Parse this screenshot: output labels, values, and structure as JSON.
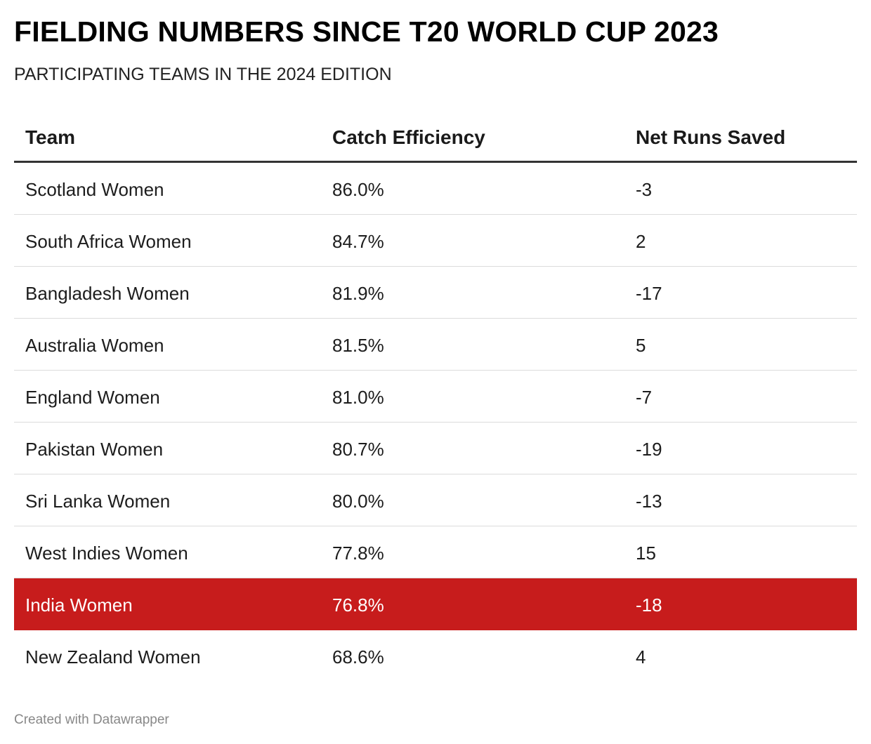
{
  "header": {
    "title": "FIELDING NUMBERS SINCE T20 WORLD CUP 2023",
    "subtitle": "PARTICIPATING TEAMS IN THE 2024 EDITION"
  },
  "chart_data": {
    "type": "table",
    "columns": [
      "Team",
      "Catch Efficiency",
      "Net Runs Saved"
    ],
    "rows": [
      {
        "team": "Scotland Women",
        "catch_efficiency": "86.0%",
        "net_runs_saved": "-3",
        "highlight": false
      },
      {
        "team": "South Africa Women",
        "catch_efficiency": "84.7%",
        "net_runs_saved": "2",
        "highlight": false
      },
      {
        "team": "Bangladesh Women",
        "catch_efficiency": "81.9%",
        "net_runs_saved": "-17",
        "highlight": false
      },
      {
        "team": "Australia Women",
        "catch_efficiency": "81.5%",
        "net_runs_saved": "5",
        "highlight": false
      },
      {
        "team": "England Women",
        "catch_efficiency": "81.0%",
        "net_runs_saved": "-7",
        "highlight": false
      },
      {
        "team": "Pakistan Women",
        "catch_efficiency": "80.7%",
        "net_runs_saved": "-19",
        "highlight": false
      },
      {
        "team": "Sri Lanka Women",
        "catch_efficiency": "80.0%",
        "net_runs_saved": "-13",
        "highlight": false
      },
      {
        "team": "West Indies Women",
        "catch_efficiency": "77.8%",
        "net_runs_saved": "15",
        "highlight": false
      },
      {
        "team": "India Women",
        "catch_efficiency": "76.8%",
        "net_runs_saved": "-18",
        "highlight": true
      },
      {
        "team": "New Zealand Women",
        "catch_efficiency": "68.6%",
        "net_runs_saved": "4",
        "highlight": false
      }
    ],
    "highlight_color": "#c71c1c"
  },
  "footer": {
    "credit": "Created with Datawrapper"
  }
}
